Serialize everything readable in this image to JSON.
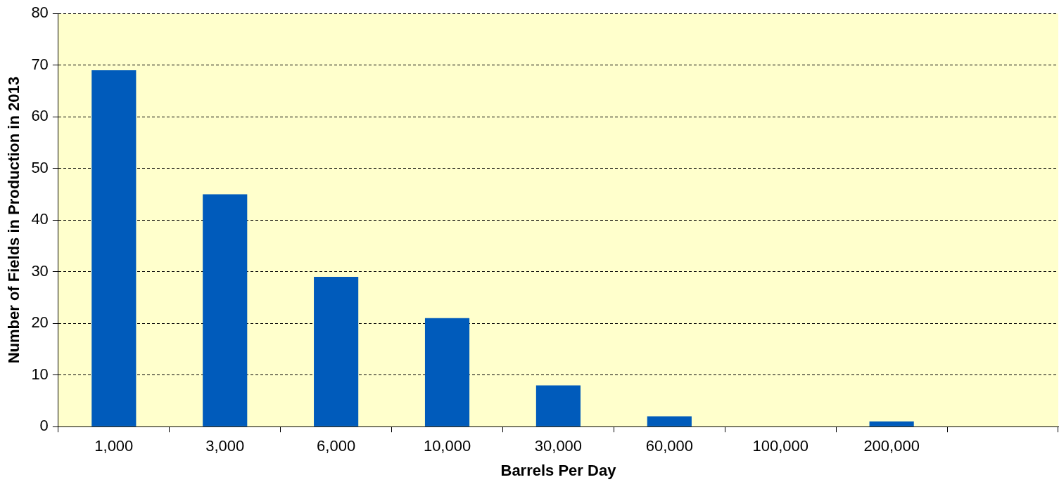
{
  "chart_data": {
    "type": "bar",
    "xlabel": "Barrels Per Day",
    "ylabel": "Number of Fields in Production in 2013",
    "categories": [
      "1,000",
      "3,000",
      "6,000",
      "10,000",
      "30,000",
      "60,000",
      "100,000",
      "200,000",
      null
    ],
    "values": [
      69,
      45,
      29,
      21,
      8,
      2,
      0,
      1,
      null
    ],
    "color": "#005bbb",
    "ylim": [
      0,
      80
    ],
    "yticks": [
      0,
      10,
      20,
      30,
      40,
      50,
      60,
      70,
      80
    ],
    "grid": "y",
    "legend": false
  }
}
